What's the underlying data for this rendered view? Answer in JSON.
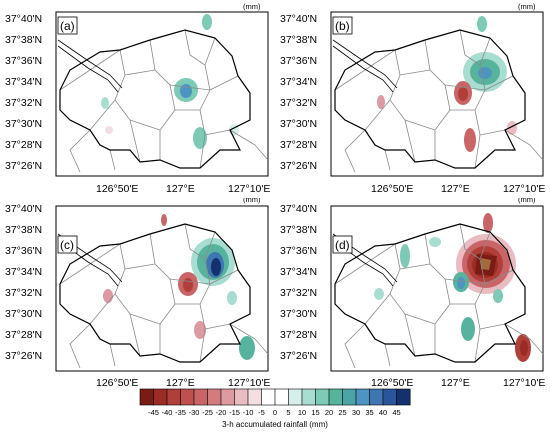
{
  "units": "(mm)",
  "lat_labels": [
    "37°40'N",
    "37°38'N",
    "37°36'N",
    "37°34'N",
    "37°32'N",
    "37°30'N",
    "37°28'N",
    "37°26'N"
  ],
  "lon_labels": [
    "126°50'E",
    "127°E",
    "127°10'E"
  ],
  "panels": [
    {
      "letter": "(a)"
    },
    {
      "letter": "(b)"
    },
    {
      "letter": "(c)"
    },
    {
      "letter": "(d)"
    }
  ],
  "colorbar": {
    "title": "3-h accumulated rainfall (mm)",
    "labels": [
      "-45",
      "-40",
      "-35",
      "-30",
      "-25",
      "-20",
      "-15",
      "-10",
      "-5",
      "0",
      "5",
      "10",
      "15",
      "20",
      "25",
      "30",
      "35",
      "40",
      "45"
    ],
    "colors": [
      "#7a1b14",
      "#9b2c25",
      "#b03f39",
      "#c0504f",
      "#c96566",
      "#d37c80",
      "#de9aa1",
      "#e9bcc2",
      "#f4dee2",
      "#ffffff",
      "#ffffff",
      "#d6efeb",
      "#a8ddd1",
      "#7dcab7",
      "#58b39d",
      "#4aa5a6",
      "#4d95c0",
      "#3f76b2",
      "#2a559a",
      "#13316d"
    ]
  }
}
